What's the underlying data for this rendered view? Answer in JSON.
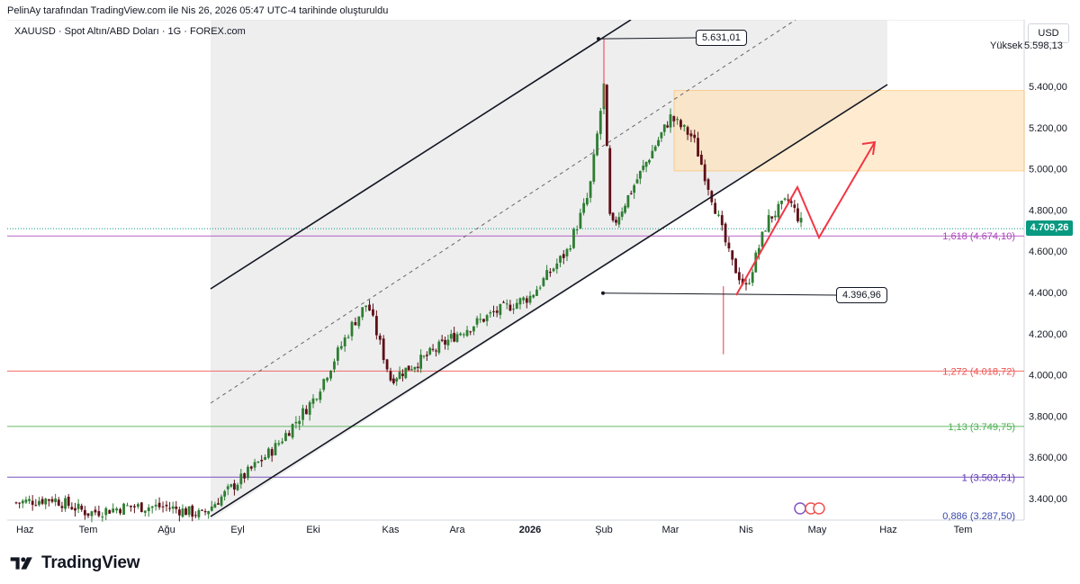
{
  "caption": "PelinAy tarafından TradingView.com ile Nis 26, 2026 05:47 UTC-4 tarihinde oluşturuldu",
  "symbol_line": "XAUUSD · Spot Altın/ABD Doları · 1G · FOREX.com",
  "currency": "USD",
  "high_label": "Yüksek",
  "high_value": "5.598,13",
  "current_price": "4.709,26",
  "brand": "TradingView",
  "colors": {
    "up": "#089981",
    "down": "#f23645",
    "upCandle": "#2e7d32",
    "downCandle": "#5d0f17",
    "channel": "#131722",
    "zone": "#ffe0b2",
    "zoneBorder": "#ffb74d",
    "projection": "#f23645",
    "fib1618": "#ab47bc",
    "fib1272": "#ef5350",
    "fib113": "#4caf50",
    "fib1": "#5e35b1"
  },
  "annotations": {
    "peak_callout": "5.631,01",
    "low_callout": "4.396,96"
  },
  "chart_data": {
    "type": "candlestick",
    "symbol": "XAUUSD",
    "timeframe": "1G",
    "y_range": [
      3300,
      5700
    ],
    "y_ticks": [
      {
        "value": 5400,
        "label": "5.400,00"
      },
      {
        "value": 5200,
        "label": "5.200,00"
      },
      {
        "value": 5000,
        "label": "5.000,00"
      },
      {
        "value": 4800,
        "label": "4.800,00"
      },
      {
        "value": 4600,
        "label": "4.600,00"
      },
      {
        "value": 4400,
        "label": "4.400,00"
      },
      {
        "value": 4200,
        "label": "4.200,00"
      },
      {
        "value": 4000,
        "label": "4.000,00"
      },
      {
        "value": 3800,
        "label": "3.800,00"
      },
      {
        "value": 3600,
        "label": "3.600,00"
      },
      {
        "value": 3400,
        "label": "3.400,00"
      }
    ],
    "x_ticks": [
      {
        "month": 0,
        "label": "Haz"
      },
      {
        "month": 1,
        "label": "Tem"
      },
      {
        "month": 2,
        "label": "Ağu"
      },
      {
        "month": 3,
        "label": "Eyl"
      },
      {
        "month": 4,
        "label": "Eki"
      },
      {
        "month": 5,
        "label": "Kas"
      },
      {
        "month": 6,
        "label": "Ara"
      },
      {
        "month": 7,
        "label": "2026"
      },
      {
        "month": 8,
        "label": "Şub"
      },
      {
        "month": 9,
        "label": "Mar"
      },
      {
        "month": 10,
        "label": "Nis"
      },
      {
        "month": 11,
        "label": "May"
      },
      {
        "month": 12,
        "label": "Haz"
      },
      {
        "month": 13,
        "label": "Tem"
      }
    ],
    "fib_levels": [
      {
        "ratio": "1,618",
        "value": 4674.1,
        "label": "1,618 (4.674,10)",
        "color": "#ab47bc"
      },
      {
        "ratio": "1,272",
        "value": 4018.72,
        "label": "1,272 (4.018,72)",
        "color": "#ef5350"
      },
      {
        "ratio": "1,13",
        "value": 3749.75,
        "label": "1,13 (3.749,75)",
        "color": "#4caf50"
      },
      {
        "ratio": "1",
        "value": 3503.51,
        "label": "1 (3.503,51)",
        "color": "#5e35b1"
      },
      {
        "ratio": "0,886",
        "value": 3287.5,
        "label": "0,886 (3.287,50)",
        "color": "#3949ab"
      }
    ],
    "current_price": 4709.26,
    "peak": 5631.01,
    "swing_low": 4396.96,
    "zone": {
      "top": 5380,
      "bottom": 4990
    },
    "closes_monthly_approx": [
      {
        "month": 0.0,
        "value": 3380
      },
      {
        "month": 0.5,
        "value": 3400
      },
      {
        "month": 1.0,
        "value": 3330
      },
      {
        "month": 1.5,
        "value": 3360
      },
      {
        "month": 2.0,
        "value": 3360
      },
      {
        "month": 2.5,
        "value": 3320
      },
      {
        "month": 3.0,
        "value": 3480
      },
      {
        "month": 3.5,
        "value": 3650
      },
      {
        "month": 4.0,
        "value": 3880
      },
      {
        "month": 4.5,
        "value": 4240
      },
      {
        "month": 4.7,
        "value": 4350
      },
      {
        "month": 5.0,
        "value": 3980
      },
      {
        "month": 5.5,
        "value": 4080
      },
      {
        "month": 6.0,
        "value": 4200
      },
      {
        "month": 6.5,
        "value": 4300
      },
      {
        "month": 7.0,
        "value": 4380
      },
      {
        "month": 7.5,
        "value": 4600
      },
      {
        "month": 7.8,
        "value": 4880
      },
      {
        "month": 8.0,
        "value": 5400
      },
      {
        "month": 8.1,
        "value": 4700
      },
      {
        "month": 8.5,
        "value": 4950
      },
      {
        "month": 9.0,
        "value": 5250
      },
      {
        "month": 9.3,
        "value": 5150
      },
      {
        "month": 9.6,
        "value": 4800
      },
      {
        "month": 9.8,
        "value": 4550
      },
      {
        "month": 10.0,
        "value": 4420
      },
      {
        "month": 10.3,
        "value": 4750
      },
      {
        "month": 10.6,
        "value": 4850
      },
      {
        "month": 10.8,
        "value": 4720
      }
    ]
  }
}
